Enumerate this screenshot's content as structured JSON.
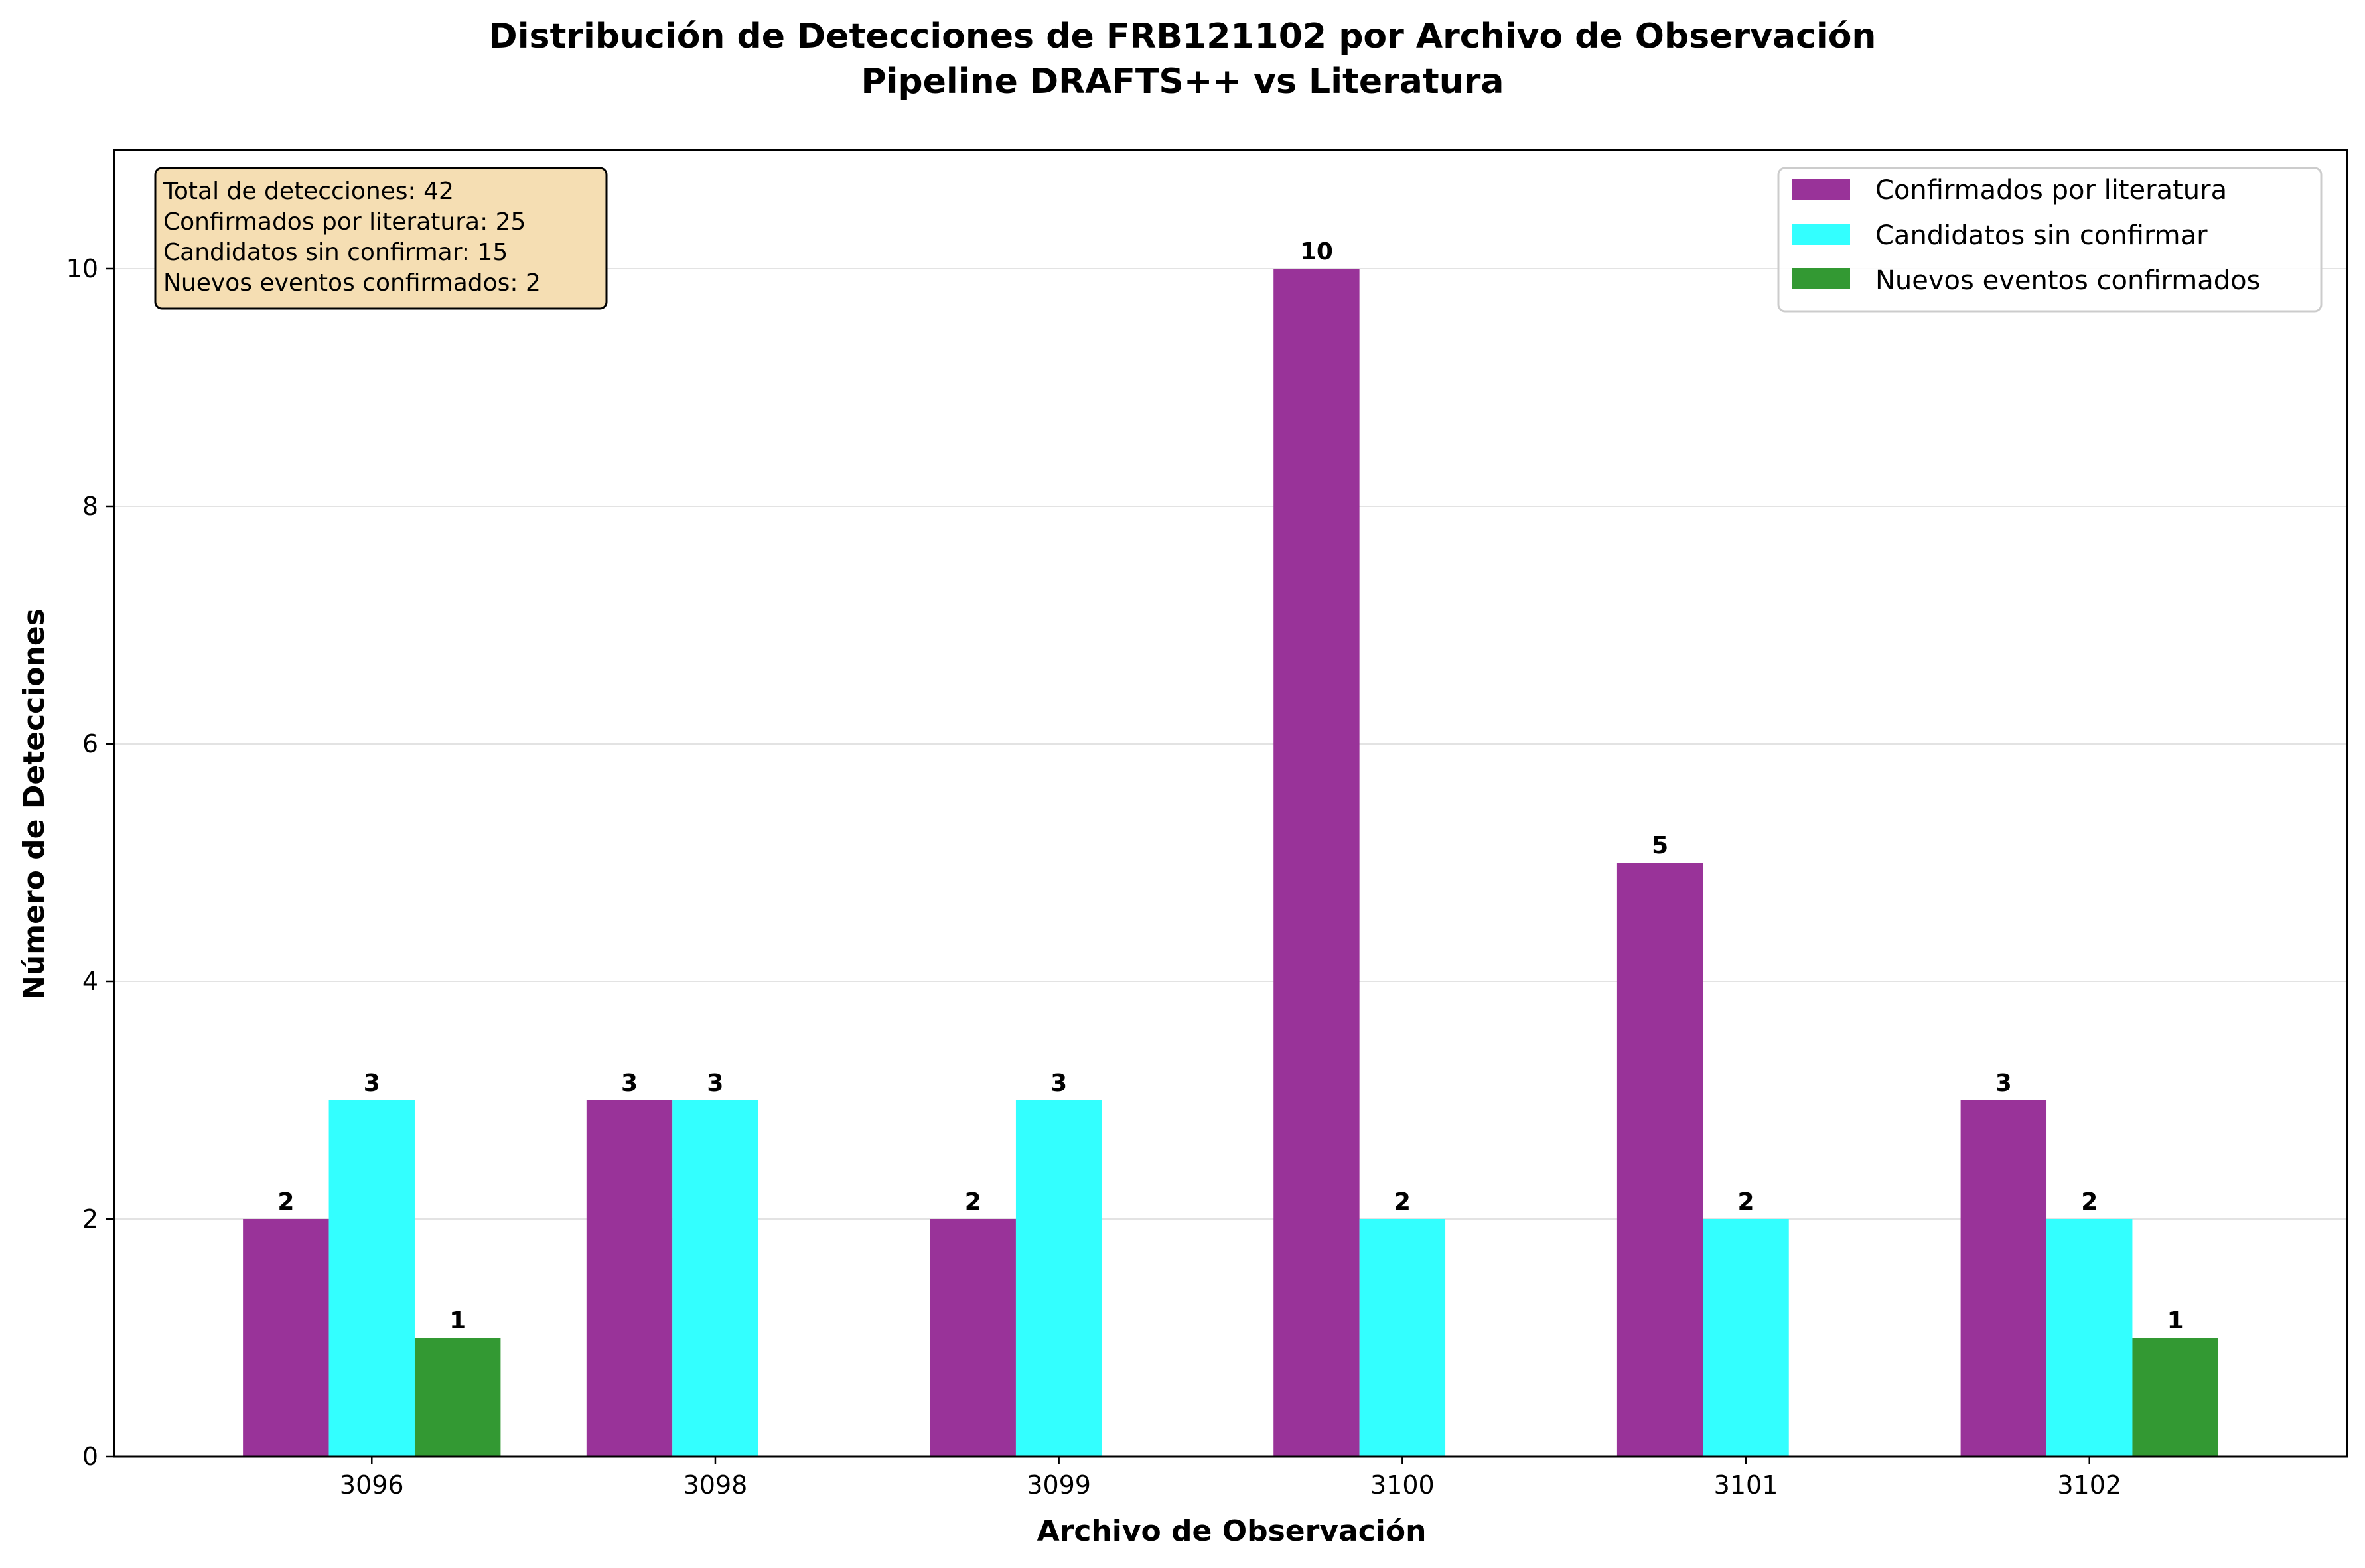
{
  "chart_data": {
    "type": "bar",
    "title": "Distribución de Detecciones de FRB121102 por Archivo de Observación",
    "subtitle": "Pipeline DRAFTS++ vs Literatura",
    "xlabel": "Archivo de Observación",
    "ylabel": "Número de Detecciones",
    "categories": [
      "3096",
      "3098",
      "3099",
      "3100",
      "3101",
      "3102"
    ],
    "series": [
      {
        "name": "Confirmados por literatura",
        "color": "#993399",
        "values": [
          2,
          3,
          2,
          10,
          5,
          3
        ]
      },
      {
        "name": "Candidatos sin confirmar",
        "color": "#33ffff",
        "values": [
          3,
          3,
          3,
          2,
          2,
          2
        ]
      },
      {
        "name": "Nuevos eventos confirmados",
        "color": "#339933",
        "values": [
          1,
          0,
          0,
          0,
          0,
          1
        ]
      }
    ],
    "ylim": [
      0,
      11
    ],
    "yticks": [
      "0",
      "2",
      "4",
      "6",
      "8",
      "10"
    ],
    "grid": "horizontal",
    "legend_position": "top-right",
    "stats_box": [
      "Total de detecciones: 42",
      "Confirmados por literatura: 25",
      "Candidatos sin confirmar: 15",
      "Nuevos eventos confirmados: 2"
    ],
    "stats_box_color": "#f5deb3"
  }
}
